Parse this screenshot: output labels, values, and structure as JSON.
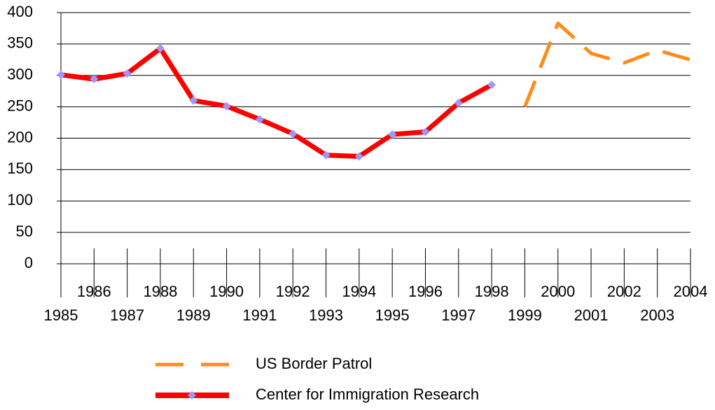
{
  "chart_data": {
    "type": "line",
    "categories": [
      "1985",
      "1986",
      "1987",
      "1988",
      "1989",
      "1990",
      "1991",
      "1992",
      "1993",
      "1994",
      "1995",
      "1996",
      "1997",
      "1998",
      "1999",
      "2000",
      "2001",
      "2002",
      "2003",
      "2004"
    ],
    "series": [
      {
        "name": "US Border Patrol",
        "color": "#ff8c1a",
        "dashed": true,
        "markers": false,
        "values": [
          null,
          null,
          null,
          null,
          null,
          null,
          null,
          null,
          null,
          null,
          null,
          null,
          null,
          null,
          250,
          383,
          335,
          320,
          340,
          325
        ]
      },
      {
        "name": "Center for Immigration Research",
        "color": "#ff0000",
        "marker_color": "#9999ff",
        "dashed": false,
        "markers": true,
        "values": [
          301,
          294,
          303,
          343,
          260,
          251,
          230,
          207,
          173,
          171,
          206,
          210,
          256,
          285,
          null,
          null,
          null,
          null,
          null,
          null
        ]
      }
    ],
    "ylim": [
      0,
      400
    ],
    "yticks": [
      0,
      50,
      100,
      150,
      200,
      250,
      300,
      350,
      400
    ],
    "grid": true,
    "legend": "bottom"
  }
}
